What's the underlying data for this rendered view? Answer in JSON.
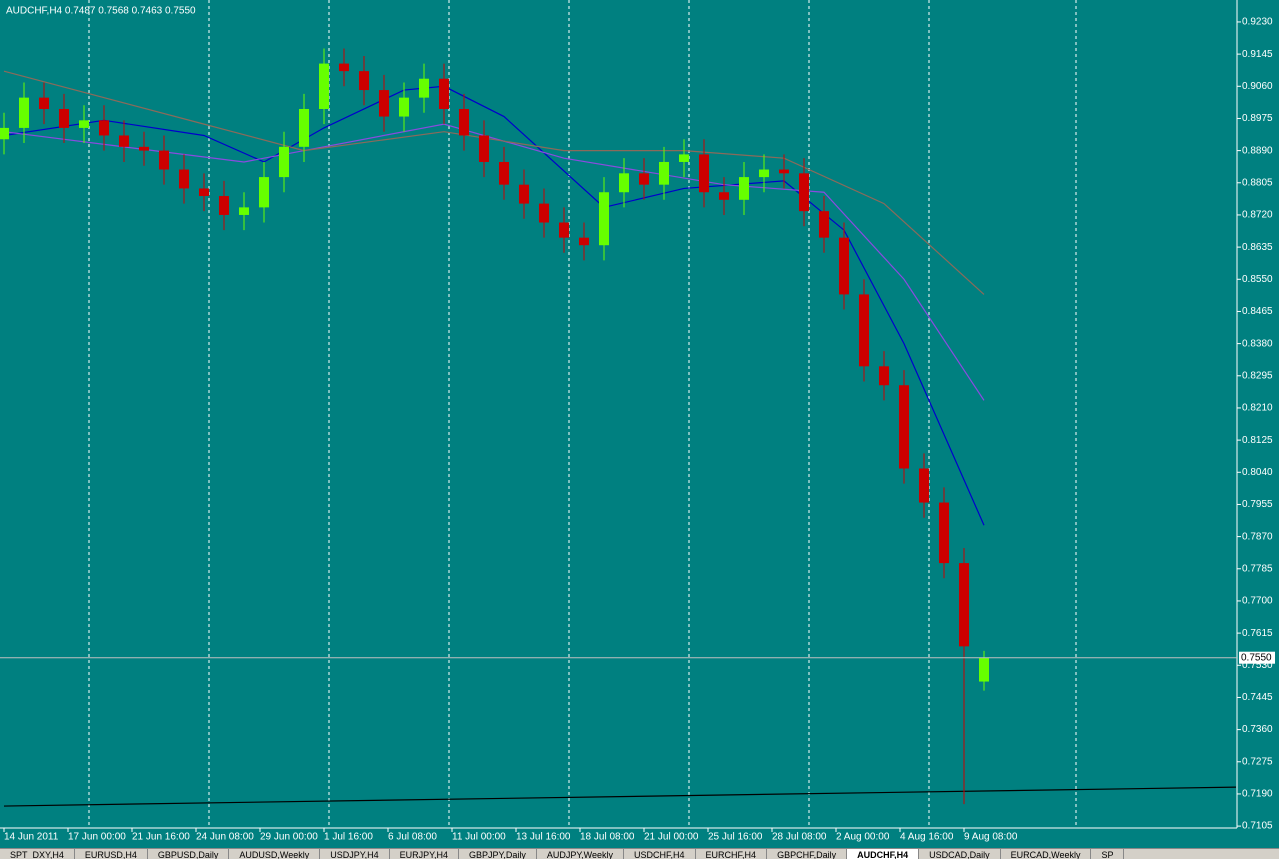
{
  "chart_data": {
    "type": "candlestick",
    "title": "AUDCHF,H4  0.7487 0.7568 0.7463 0.7550",
    "up_color": "#66ff00",
    "down_color": "#cc0000",
    "background": "#008080",
    "xlim": [
      0,
      308
    ],
    "ylim": [
      0.71,
      0.9288
    ],
    "xticks": [
      {
        "value": 0,
        "label": "14 Jun 2011"
      },
      {
        "value": 16,
        "label": "17 Jun 00:00"
      },
      {
        "value": 32,
        "label": "21 Jun 16:00"
      },
      {
        "value": 48,
        "label": "24 Jun 08:00"
      },
      {
        "value": 64,
        "label": "29 Jun 00:00"
      },
      {
        "value": 80,
        "label": "1 Jul 16:00"
      },
      {
        "value": 96,
        "label": "6 Jul 08:00"
      },
      {
        "value": 112,
        "label": "11 Jul 00:00"
      },
      {
        "value": 128,
        "label": "13 Jul 16:00"
      },
      {
        "value": 144,
        "label": "18 Jul 08:00"
      },
      {
        "value": 160,
        "label": "21 Jul 00:00"
      },
      {
        "value": 176,
        "label": "25 Jul 16:00"
      },
      {
        "value": 192,
        "label": "28 Jul 08:00"
      },
      {
        "value": 208,
        "label": "2 Aug 00:00"
      },
      {
        "value": 224,
        "label": "4 Aug 16:00"
      },
      {
        "value": 240,
        "label": "9 Aug 08:00"
      }
    ],
    "yticks": [
      {
        "value": 0.923,
        "label": "0.9230"
      },
      {
        "value": 0.9145,
        "label": "0.9145"
      },
      {
        "value": 0.906,
        "label": "0.9060"
      },
      {
        "value": 0.8975,
        "label": "0.8975"
      },
      {
        "value": 0.889,
        "label": "0.8890"
      },
      {
        "value": 0.8805,
        "label": "0.8805"
      },
      {
        "value": 0.872,
        "label": "0.8720"
      },
      {
        "value": 0.8635,
        "label": "0.8635"
      },
      {
        "value": 0.855,
        "label": "0.8550"
      },
      {
        "value": 0.8465,
        "label": "0.8465"
      },
      {
        "value": 0.838,
        "label": "0.8380"
      },
      {
        "value": 0.8295,
        "label": "0.8295"
      },
      {
        "value": 0.821,
        "label": "0.8210"
      },
      {
        "value": 0.8125,
        "label": "0.8125"
      },
      {
        "value": 0.804,
        "label": "0.8040"
      },
      {
        "value": 0.7955,
        "label": "0.7955"
      },
      {
        "value": 0.787,
        "label": "0.7870"
      },
      {
        "value": 0.7785,
        "label": "0.7785"
      },
      {
        "value": 0.77,
        "label": "0.7700"
      },
      {
        "value": 0.7615,
        "label": "0.7615"
      },
      {
        "value": 0.753,
        "label": "0.7530"
      },
      {
        "value": 0.7445,
        "label": "0.7445"
      },
      {
        "value": 0.736,
        "label": "0.7360"
      },
      {
        "value": 0.7275,
        "label": "0.7275"
      },
      {
        "value": 0.719,
        "label": "0.7190"
      },
      {
        "value": 0.7105,
        "label": "0.7105"
      }
    ],
    "period_separators": [
      21.25,
      51.25,
      81.25,
      111.25,
      141.25,
      171.25,
      201.25,
      231.25,
      268
    ],
    "x": [
      0,
      5,
      10,
      15,
      20,
      25,
      30,
      35,
      40,
      45,
      50,
      55,
      60,
      65,
      70,
      75,
      80,
      85,
      90,
      95,
      100,
      105,
      110,
      115,
      120,
      125,
      130,
      135,
      140,
      145,
      150,
      155,
      160,
      165,
      170,
      175,
      180,
      185,
      190,
      195,
      200,
      205,
      210,
      215,
      220,
      225,
      230,
      235,
      240,
      245
    ],
    "open": [
      0.892,
      0.895,
      0.903,
      0.9,
      0.895,
      0.897,
      0.893,
      0.89,
      0.889,
      0.884,
      0.879,
      0.877,
      0.872,
      0.874,
      0.882,
      0.89,
      0.9,
      0.912,
      0.91,
      0.905,
      0.898,
      0.903,
      0.908,
      0.9,
      0.893,
      0.886,
      0.88,
      0.875,
      0.87,
      0.866,
      0.864,
      0.878,
      0.883,
      0.88,
      0.886,
      0.888,
      0.878,
      0.876,
      0.882,
      0.884,
      0.883,
      0.873,
      0.866,
      0.851,
      0.832,
      0.827,
      0.805,
      0.796,
      0.78,
      0.7487
    ],
    "high": [
      0.899,
      0.907,
      0.907,
      0.904,
      0.901,
      0.901,
      0.897,
      0.894,
      0.893,
      0.888,
      0.883,
      0.881,
      0.878,
      0.886,
      0.894,
      0.904,
      0.916,
      0.916,
      0.914,
      0.909,
      0.907,
      0.912,
      0.912,
      0.904,
      0.897,
      0.89,
      0.884,
      0.879,
      0.874,
      0.87,
      0.882,
      0.887,
      0.887,
      0.89,
      0.892,
      0.892,
      0.882,
      0.886,
      0.888,
      0.888,
      0.887,
      0.877,
      0.87,
      0.855,
      0.836,
      0.831,
      0.809,
      0.8,
      0.784,
      0.7568
    ],
    "low": [
      0.888,
      0.891,
      0.896,
      0.891,
      0.891,
      0.889,
      0.886,
      0.885,
      0.88,
      0.875,
      0.873,
      0.868,
      0.868,
      0.87,
      0.878,
      0.886,
      0.896,
      0.906,
      0.901,
      0.894,
      0.894,
      0.899,
      0.896,
      0.889,
      0.882,
      0.876,
      0.871,
      0.866,
      0.862,
      0.86,
      0.86,
      0.874,
      0.876,
      0.876,
      0.882,
      0.874,
      0.872,
      0.872,
      0.878,
      0.879,
      0.869,
      0.862,
      0.847,
      0.828,
      0.823,
      0.801,
      0.792,
      0.776,
      0.7163,
      0.7463
    ],
    "close": [
      0.895,
      0.903,
      0.9,
      0.895,
      0.897,
      0.893,
      0.89,
      0.889,
      0.884,
      0.879,
      0.877,
      0.872,
      0.874,
      0.882,
      0.89,
      0.9,
      0.912,
      0.91,
      0.905,
      0.898,
      0.903,
      0.908,
      0.9,
      0.893,
      0.886,
      0.88,
      0.875,
      0.87,
      0.866,
      0.864,
      0.878,
      0.883,
      0.88,
      0.886,
      0.888,
      0.878,
      0.876,
      0.882,
      0.884,
      0.883,
      0.873,
      0.866,
      0.851,
      0.832,
      0.827,
      0.805,
      0.796,
      0.78,
      0.758,
      0.755
    ],
    "lines": [
      {
        "color": "#0000cc",
        "x": [
          0,
          25,
          50,
          65,
          80,
          100,
          110,
          125,
          150,
          170,
          195,
          210,
          225,
          245
        ],
        "values": [
          0.893,
          0.897,
          0.893,
          0.886,
          0.895,
          0.905,
          0.906,
          0.898,
          0.874,
          0.879,
          0.881,
          0.868,
          0.838,
          0.79
        ]
      },
      {
        "color": "#8a4be0",
        "x": [
          0,
          60,
          110,
          140,
          180,
          205,
          225,
          245
        ],
        "values": [
          0.894,
          0.886,
          0.896,
          0.887,
          0.88,
          0.878,
          0.855,
          0.823
        ]
      },
      {
        "color": "#8b6a5a",
        "x": [
          0,
          50,
          75,
          110,
          140,
          170,
          195,
          220,
          245
        ],
        "values": [
          0.91,
          0.896,
          0.889,
          0.894,
          0.889,
          0.889,
          0.887,
          0.875,
          0.851
        ]
      },
      {
        "color": "#000000",
        "x": [
          0,
          308
        ],
        "values": [
          0.7158,
          0.7208
        ]
      }
    ],
    "current_price": {
      "value": 0.755,
      "label": "0.7550"
    }
  },
  "tabs": [
    "SPT_DXY,H4",
    "EURUSD,H4",
    "GBPUSD,Daily",
    "AUDUSD,Weekly",
    "USDJPY,H4",
    "EURJPY,H4",
    "GBPJPY,Daily",
    "AUDJPY,Weekly",
    "USDCHF,H4",
    "EURCHF,H4",
    "GBPCHF,Daily",
    "AUDCHF,H4",
    "USDCAD,Daily",
    "EURCAD,Weekly",
    "SP"
  ],
  "active_tab": 11
}
